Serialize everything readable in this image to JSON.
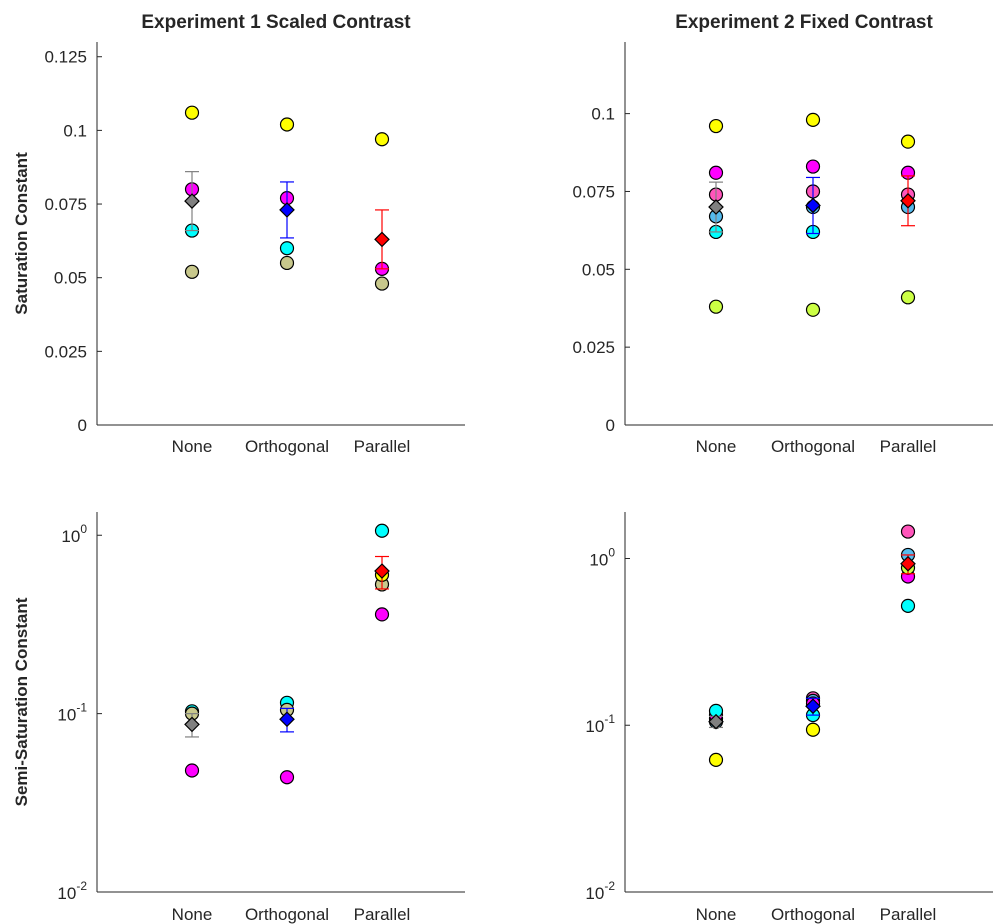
{
  "chart_data": [
    {
      "type": "scatter",
      "title": "Experiment 1 Scaled Contrast",
      "ylabel": "Saturation Constant",
      "xlabel": "",
      "categories": [
        "None",
        "Orthogonal",
        "Parallel"
      ],
      "yscale": "linear",
      "ylim": [
        0,
        0.13
      ],
      "yticks": [
        0,
        0.025,
        0.05,
        0.075,
        0.1,
        0.125
      ],
      "yticklabels": [
        "0",
        "0.025",
        "0.05",
        "0.075",
        "0.1",
        "0.125"
      ],
      "grid": false,
      "participants": [
        {
          "color": "#ffff00",
          "values": [
            0.106,
            0.102,
            0.097
          ]
        },
        {
          "color": "#ff00ff",
          "values": [
            0.08,
            0.077,
            0.053
          ]
        },
        {
          "color": "#00ffff",
          "values": [
            0.066,
            0.06,
            null
          ]
        },
        {
          "color": "#c8c88c",
          "values": [
            0.052,
            0.055,
            0.048
          ]
        }
      ],
      "mean": {
        "values": [
          0.076,
          0.073,
          0.063
        ],
        "err": [
          0.01,
          0.0095,
          0.01
        ],
        "colors": [
          "#808080",
          "#0000ff",
          "#ff0000"
        ]
      }
    },
    {
      "type": "scatter",
      "title": "Experiment 2 Fixed Contrast",
      "ylabel": "",
      "xlabel": "",
      "categories": [
        "None",
        "Orthogonal",
        "Parallel"
      ],
      "yscale": "linear",
      "ylim": [
        0,
        0.123
      ],
      "yticks": [
        0,
        0.025,
        0.05,
        0.075,
        0.1
      ],
      "yticklabels": [
        "0",
        "0.025",
        "0.05",
        "0.075",
        "0.1"
      ],
      "grid": false,
      "participants": [
        {
          "color": "#ffff00",
          "values": [
            0.096,
            0.098,
            0.091
          ]
        },
        {
          "color": "#ff00ff",
          "values": [
            0.081,
            0.083,
            0.081
          ]
        },
        {
          "color": "#ff55bb",
          "values": [
            0.074,
            0.075,
            0.074
          ]
        },
        {
          "color": "#55bbee",
          "values": [
            0.067,
            0.07,
            0.07
          ]
        },
        {
          "color": "#00ffff",
          "values": [
            0.062,
            0.062,
            null
          ]
        },
        {
          "color": "#ccff44",
          "values": [
            0.038,
            0.037,
            0.041
          ]
        }
      ],
      "mean": {
        "values": [
          0.07,
          0.0705,
          0.072
        ],
        "err": [
          0.008,
          0.009,
          0.008
        ],
        "colors": [
          "#808080",
          "#0000ff",
          "#ff0000"
        ]
      }
    },
    {
      "type": "scatter",
      "title": "",
      "ylabel": "Semi-Saturation Constant",
      "xlabel": "",
      "categories": [
        "None",
        "Orthogonal",
        "Parallel"
      ],
      "yscale": "log",
      "ylim": [
        0.01,
        1.35
      ],
      "yticks": [
        0.01,
        0.1,
        1
      ],
      "yticklabels": [
        [
          "10",
          "-2"
        ],
        [
          "10",
          "-1"
        ],
        [
          "10",
          "0"
        ]
      ],
      "grid": false,
      "participants": [
        {
          "color": "#00ffff",
          "values": [
            0.103,
            0.115,
            1.06
          ]
        },
        {
          "color": "#c8c88c",
          "values": [
            0.1,
            0.105,
            0.53
          ]
        },
        {
          "color": "#ffff00",
          "values": [
            null,
            null,
            0.6
          ]
        },
        {
          "color": "#ff00ff",
          "values": [
            0.048,
            0.044,
            0.36
          ]
        }
      ],
      "mean": {
        "values": [
          0.087,
          0.093,
          0.63
        ],
        "err": [
          0.013,
          0.014,
          0.13
        ],
        "colors": [
          "#808080",
          "#0000ff",
          "#ff0000"
        ]
      }
    },
    {
      "type": "scatter",
      "title": "",
      "ylabel": "",
      "xlabel": "",
      "categories": [
        "None",
        "Orthogonal",
        "Parallel"
      ],
      "yscale": "log",
      "ylim": [
        0.01,
        1.9
      ],
      "yticks": [
        0.01,
        0.1,
        1
      ],
      "yticklabels": [
        [
          "10",
          "-2"
        ],
        [
          "10",
          "-1"
        ],
        [
          "10",
          "0"
        ]
      ],
      "grid": false,
      "participants": [
        {
          "color": "#ff55bb",
          "values": [
            0.11,
            0.145,
            1.45
          ]
        },
        {
          "color": "#55bbee",
          "values": [
            0.105,
            0.14,
            1.05
          ]
        },
        {
          "color": "#ff00ff",
          "values": [
            0.115,
            0.135,
            0.78
          ]
        },
        {
          "color": "#00ffff",
          "values": [
            0.122,
            0.115,
            0.52
          ]
        },
        {
          "color": "#ccff44",
          "values": [
            null,
            null,
            0.88
          ]
        },
        {
          "color": "#ffff00",
          "values": [
            0.062,
            0.094,
            null
          ]
        }
      ],
      "mean": {
        "values": [
          0.105,
          0.13,
          0.93
        ],
        "err": [
          0.008,
          0.015,
          0.12
        ],
        "colors": [
          "#808080",
          "#0000ff",
          "#ff0000"
        ]
      }
    }
  ]
}
